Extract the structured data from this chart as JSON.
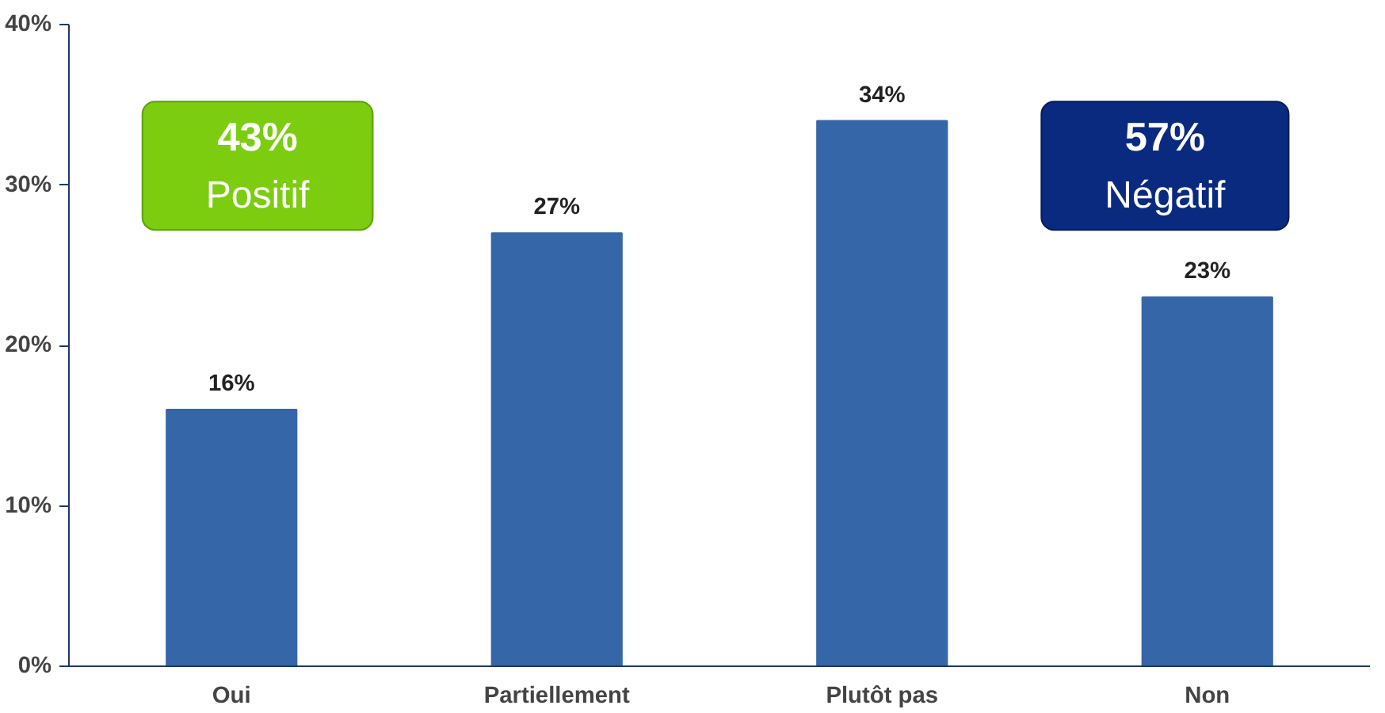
{
  "chart_data": {
    "type": "bar",
    "categories": [
      "Oui",
      "Partiellement",
      "Plutôt pas",
      "Non"
    ],
    "values": [
      16,
      27,
      34,
      23
    ],
    "color": "#3567a8",
    "ylim": [
      0,
      40
    ],
    "yticks": [
      {
        "value": 0,
        "label": "0%"
      },
      {
        "value": 10,
        "label": "10%"
      },
      {
        "value": 20,
        "label": "20%"
      },
      {
        "value": 30,
        "label": "30%"
      },
      {
        "value": 40,
        "label": "40%"
      }
    ],
    "value_labels": [
      "16%",
      "27%",
      "34%",
      "23%"
    ],
    "annotations": [
      "43%",
      "Positif",
      "57%",
      "Négatif"
    ],
    "grid": false,
    "legend": false
  }
}
